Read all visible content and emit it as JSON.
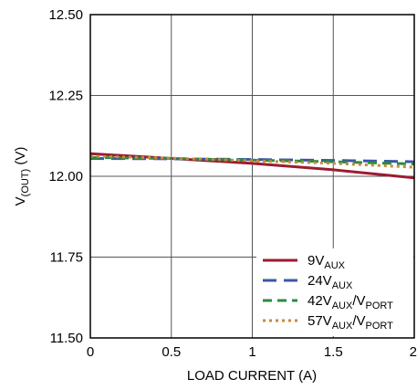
{
  "chart_data": {
    "type": "line",
    "xlabel": "LOAD CURRENT (A)",
    "ylabel": {
      "main": "V",
      "sub": "(OUT)",
      "unit": " (V)"
    },
    "xlim": [
      0,
      2
    ],
    "ylim": [
      11.5,
      12.5
    ],
    "x_ticks": [
      {
        "value": 0,
        "label": "0"
      },
      {
        "value": 0.5,
        "label": "0.5"
      },
      {
        "value": 1,
        "label": "1"
      },
      {
        "value": 1.5,
        "label": "1.5"
      },
      {
        "value": 2,
        "label": "2"
      }
    ],
    "y_ticks": [
      {
        "value": 11.5,
        "label": "11.50"
      },
      {
        "value": 11.75,
        "label": "11.75"
      },
      {
        "value": 12.0,
        "label": "12.00"
      },
      {
        "value": 12.25,
        "label": "12.25"
      },
      {
        "value": 12.5,
        "label": "12.50"
      }
    ],
    "grid": true,
    "legend_position": "bottom-right",
    "series": [
      {
        "legend": {
          "pre": "9V",
          "sub": "AUX",
          "mid": "",
          "sub2": ""
        },
        "color": "#9b1b30",
        "dash": "solid",
        "x": [
          0,
          0.5,
          1,
          1.5,
          2
        ],
        "y": [
          12.07,
          12.055,
          12.04,
          12.02,
          11.995
        ]
      },
      {
        "legend": {
          "pre": "24V",
          "sub": "AUX",
          "mid": "",
          "sub2": ""
        },
        "color": "#3a56a8",
        "dash": "long",
        "x": [
          0,
          0.5,
          1,
          1.5,
          2
        ],
        "y": [
          12.055,
          12.054,
          12.052,
          12.049,
          12.045
        ]
      },
      {
        "legend": {
          "pre": "42V",
          "sub": "AUX",
          "mid": "/V",
          "sub2": "PORT"
        },
        "color": "#2e8b3e",
        "dash": "medium",
        "x": [
          0,
          0.5,
          1,
          1.5,
          2
        ],
        "y": [
          12.058,
          12.055,
          12.05,
          12.045,
          12.038
        ]
      },
      {
        "legend": {
          "pre": "57V",
          "sub": "AUX",
          "mid": "/V",
          "sub2": "PORT"
        },
        "color": "#c88a3c",
        "dash": "dotted",
        "x": [
          0,
          0.5,
          1,
          1.5,
          2
        ],
        "y": [
          12.062,
          12.056,
          12.048,
          12.04,
          12.028
        ]
      }
    ]
  }
}
